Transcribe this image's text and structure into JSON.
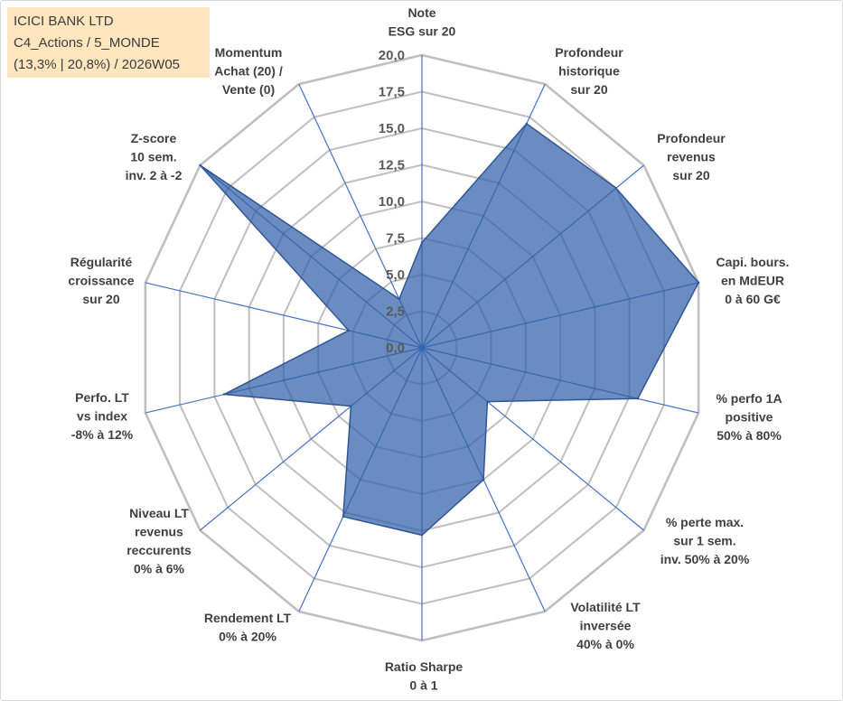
{
  "info_box": {
    "title": "ICICI BANK LTD",
    "line2": "C4_Actions / 5_MONDE",
    "line3": "(13,3% | 20,8%) / 2026W05",
    "background": "#FFE6BF"
  },
  "chart_data": {
    "type": "radar",
    "axes": [
      {
        "label": [
          "Note",
          "ESG sur 20"
        ],
        "value": 7.2
      },
      {
        "label": [
          "Profondeur",
          "historique",
          "sur 20"
        ],
        "value": 17.0
      },
      {
        "label": [
          "Profondeur",
          "revenus",
          "sur 20"
        ],
        "value": 17.5
      },
      {
        "label": [
          "Capi. bours.",
          "en MdEUR",
          "0 à 60 G€"
        ],
        "value": 20.0
      },
      {
        "label": [
          "% perfo 1A",
          "positive",
          "50% à 80%"
        ],
        "value": 15.6
      },
      {
        "label": [
          "% perte max.",
          "sur 1 sem.",
          "inv. 50% à 20%"
        ],
        "value": 5.9
      },
      {
        "label": [
          "Volatilité LT",
          "inversée",
          "40% à 0%"
        ],
        "value": 10.0
      },
      {
        "label": [
          "Ratio Sharpe",
          "0 à 1"
        ],
        "value": 12.8
      },
      {
        "label": [
          "Rendement LT",
          "0% à 20%"
        ],
        "value": 12.8
      },
      {
        "label": [
          "Niveau LT",
          "revenus",
          "reccurents",
          "0% à 6%"
        ],
        "value": 6.4
      },
      {
        "label": [
          "Perfo. LT",
          "vs index",
          "-8% à 12%"
        ],
        "value": 14.3
      },
      {
        "label": [
          "Régularité",
          "croissance",
          "sur 20"
        ],
        "value": 5.3
      },
      {
        "label": [
          "Z-score",
          "10 sem.",
          "inv. 2 à -2"
        ],
        "value": 20.0
      },
      {
        "label": [
          "Momentum",
          "Achat (20) /",
          "Vente (0)"
        ],
        "value": 3.7
      }
    ],
    "rlim": [
      0,
      20
    ],
    "tick_values": [
      0,
      2.5,
      5,
      7.5,
      10,
      12.5,
      15,
      17.5,
      20
    ],
    "tick_labels": [
      "0,0",
      "2,5",
      "5,0",
      "7,5",
      "10,0",
      "12,5",
      "15,0",
      "17,5",
      "20,0"
    ],
    "grid": true,
    "legend": "none",
    "colors": {
      "fill": "#3060A8",
      "stroke": "#2F5597",
      "axis": "#4472C4",
      "grid": "#BFBFBF"
    }
  }
}
